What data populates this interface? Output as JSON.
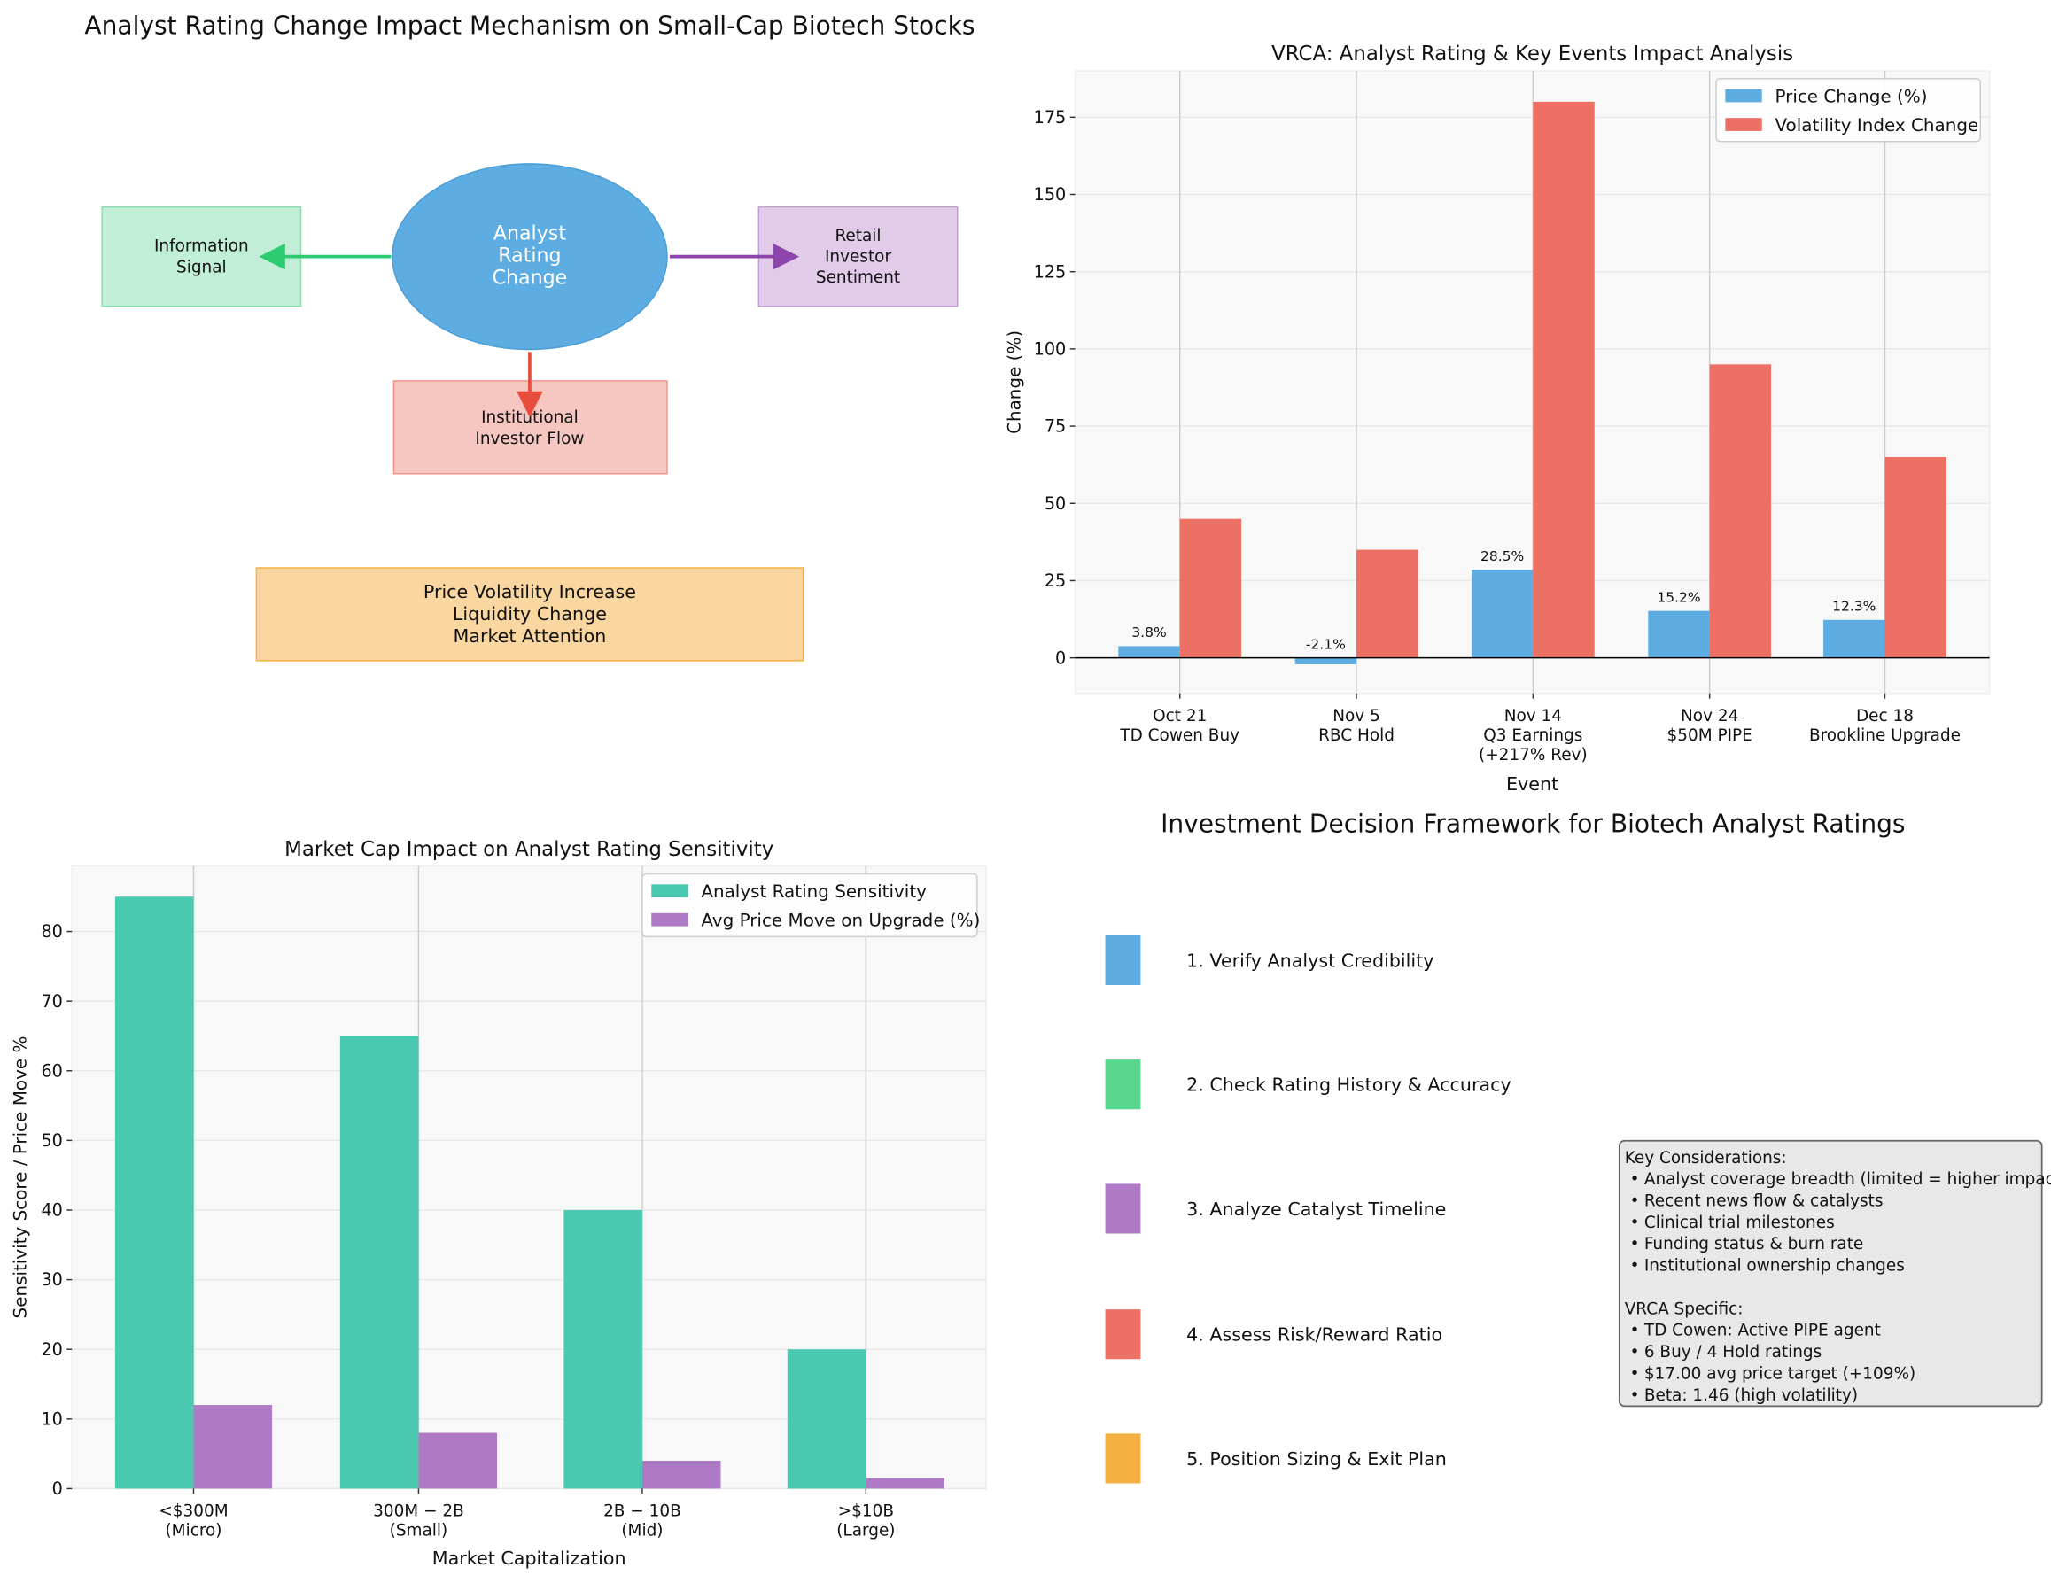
{
  "colors": {
    "blue": "#5DADE2",
    "red": "#EC7063",
    "green": "#58D68D",
    "purple": "#AF7AC5",
    "orange": "#F5B041",
    "teal": "#48C9B0",
    "axes_bg": "#F8F8F8",
    "grid": "#D0D0D0"
  },
  "diagram": {
    "title": "Analyst Rating Change Impact Mechanism on Small-Cap Biotech Stocks",
    "center": [
      "Analyst",
      "Rating",
      "Change"
    ],
    "info": [
      "Information",
      "Signal"
    ],
    "retail": [
      "Retail",
      "Investor",
      "Sentiment"
    ],
    "institutional": [
      "Institutional",
      "Investor Flow"
    ],
    "outcome": [
      "Price Volatility Increase",
      "Liquidity Change",
      "Market Attention"
    ]
  },
  "chart_data": [
    {
      "type": "bar",
      "title": "VRCA: Analyst Rating & Key Events Impact Analysis",
      "xlabel": "Event",
      "ylabel": "Change (%)",
      "categories": [
        [
          "Oct 21",
          "TD Cowen Buy"
        ],
        [
          "Nov 5",
          "RBC Hold"
        ],
        [
          "Nov 14",
          "Q3 Earnings",
          "(+217% Rev)"
        ],
        [
          "Nov 24",
          "$50M PIPE"
        ],
        [
          "Dec 18",
          "Brookline Upgrade"
        ]
      ],
      "series": [
        {
          "name": "Price Change (%)",
          "color": "#5DADE2",
          "values": [
            3.8,
            -2.1,
            28.5,
            15.2,
            12.3
          ],
          "labels": [
            "3.8%",
            "-2.1%",
            "28.5%",
            "15.2%",
            "12.3%"
          ]
        },
        {
          "name": "Volatility Index Change",
          "color": "#EC7063",
          "values": [
            45,
            35,
            180,
            95,
            65
          ]
        }
      ],
      "yticks": [
        0,
        25,
        50,
        75,
        100,
        125,
        150,
        175
      ],
      "ylim": [
        -11.5,
        190
      ],
      "grid": true,
      "legend": "top-right"
    },
    {
      "type": "bar",
      "title": "Market Cap Impact on Analyst Rating Sensitivity",
      "xlabel": "Market Capitalization",
      "ylabel": "Sensitivity Score / Price Move %",
      "categories": [
        [
          "<$300M",
          "(Micro)"
        ],
        [
          "300M − 2B",
          "(Small)"
        ],
        [
          "2B − 10B",
          "(Mid)"
        ],
        [
          ">$10B",
          "(Large)"
        ]
      ],
      "series": [
        {
          "name": "Analyst Rating Sensitivity",
          "color": "#48C9B0",
          "values": [
            85,
            65,
            40,
            20
          ]
        },
        {
          "name": "Avg Price Move on Upgrade (%)",
          "color": "#AF7AC5",
          "values": [
            12,
            8,
            4,
            1.5
          ]
        }
      ],
      "yticks": [
        0,
        10,
        20,
        30,
        40,
        50,
        60,
        70,
        80
      ],
      "ylim": [
        0,
        89.4
      ],
      "grid": true,
      "legend": "top-right"
    }
  ],
  "framework": {
    "title": "Investment Decision Framework for Biotech Analyst Ratings",
    "steps": [
      {
        "label": "1. Verify Analyst Credibility",
        "color": "#5DADE2"
      },
      {
        "label": "2. Check Rating History & Accuracy",
        "color": "#58D68D"
      },
      {
        "label": "3. Analyze Catalyst Timeline",
        "color": "#AF7AC5"
      },
      {
        "label": "4. Assess Risk/Reward Ratio",
        "color": "#EC7063"
      },
      {
        "label": "5. Position Sizing & Exit Plan",
        "color": "#F5B041"
      }
    ],
    "box": {
      "heading1": "Key Considerations:",
      "items1": [
        "Analyst coverage breadth (limited = higher impact)",
        "Recent news flow & catalysts",
        "Clinical trial milestones",
        "Funding status & burn rate",
        "Institutional ownership changes"
      ],
      "heading2": "VRCA Specific:",
      "items2": [
        "TD Cowen: Active PIPE agent",
        "6 Buy / 4 Hold ratings",
        "$17.00 avg price target (+109%)",
        "Beta: 1.46 (high volatility)"
      ]
    }
  }
}
